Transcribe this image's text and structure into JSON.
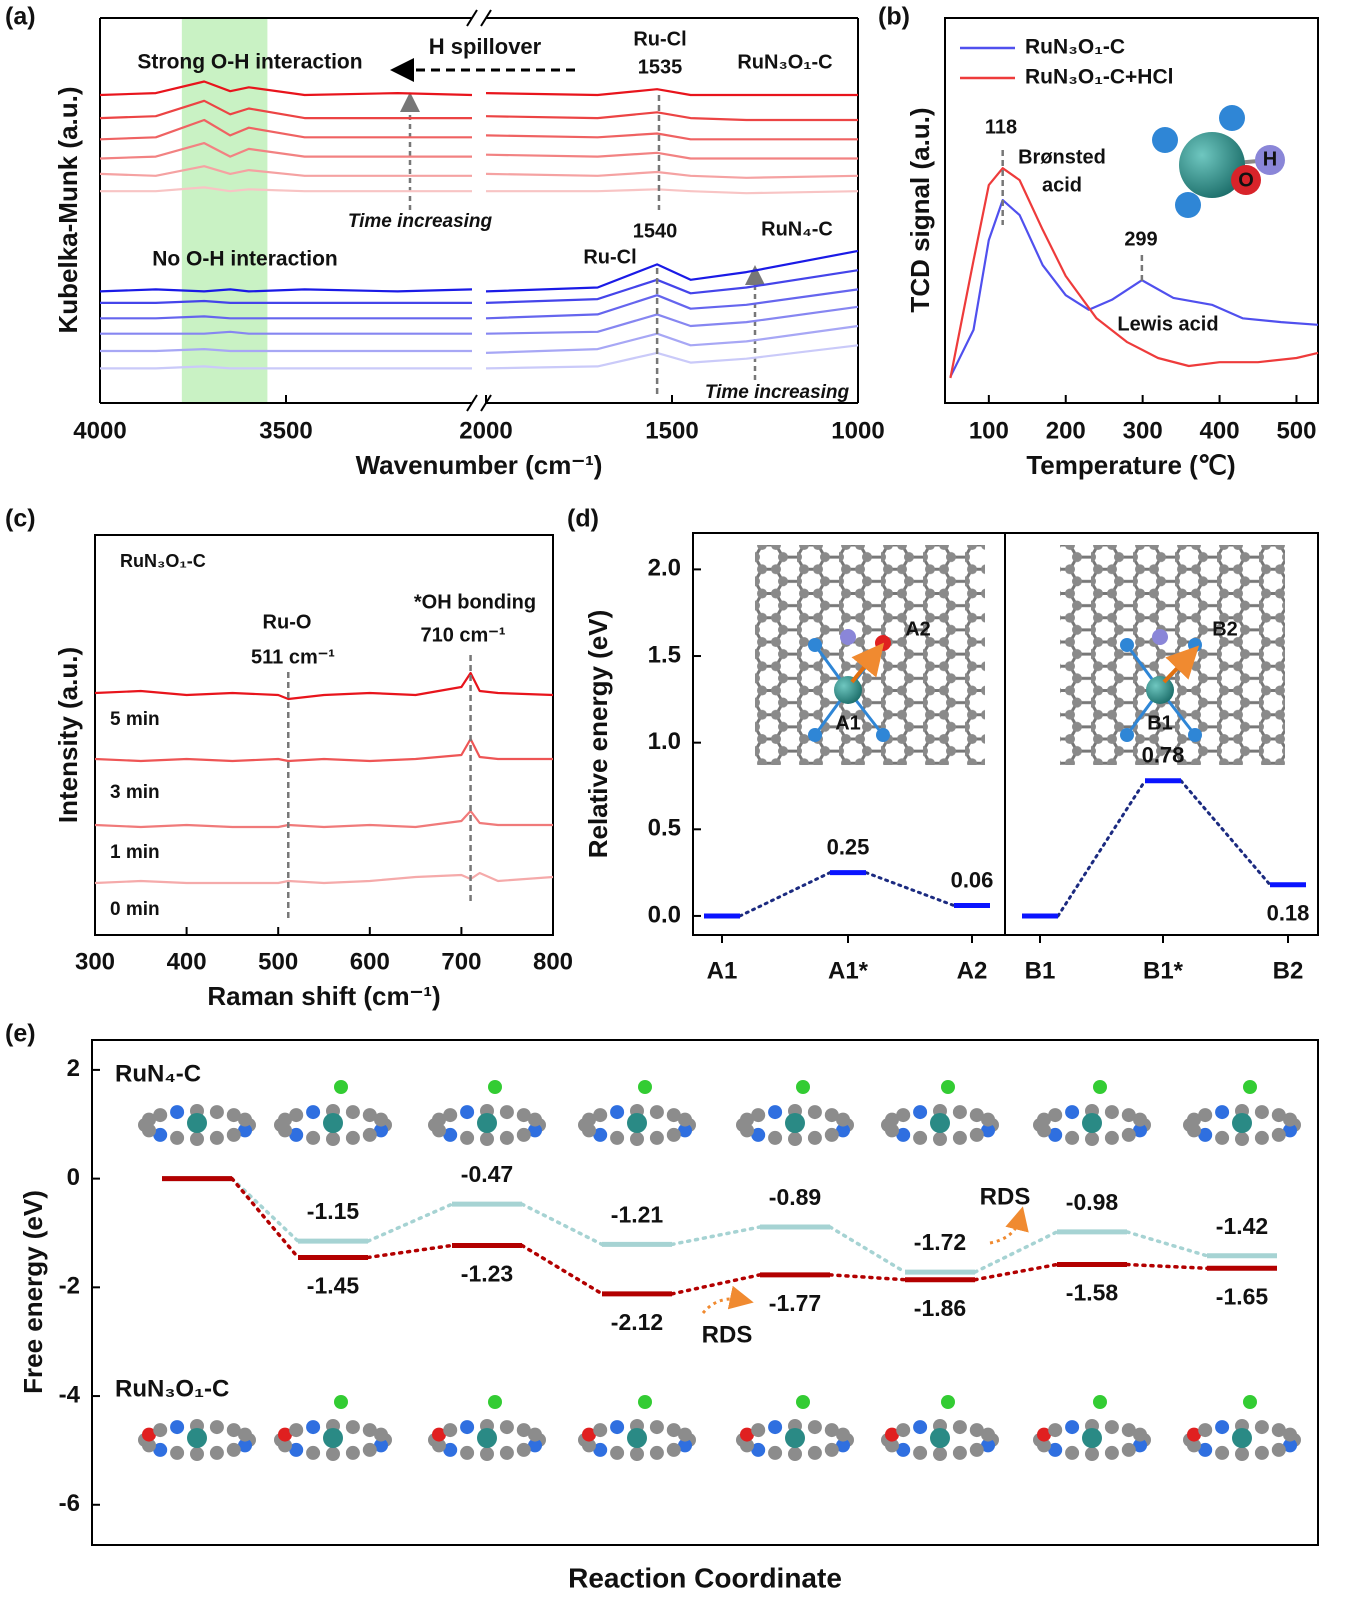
{
  "chart_data": [
    {
      "type": "line",
      "panel": "(a)",
      "xlabel": "Wavenumber (cm⁻¹)",
      "ylabel": "Kubelka-Munk (a.u.)",
      "xlim": [
        4000,
        1000
      ],
      "xbreak": [
        3000,
        2000
      ],
      "xticks": [
        4000,
        3500,
        2000,
        1500,
        1000
      ],
      "ylim": [
        0,
        10
      ],
      "highlight": [
        3780,
        3550
      ],
      "highlight_color": "#c9f2c4",
      "x": [
        4000,
        3850,
        3720,
        3650,
        3600,
        3450,
        3200,
        3000,
        2000,
        1700,
        1540,
        1450,
        1300,
        1000
      ],
      "series": [
        {
          "color": "#e8141c",
          "values": [
            8.0,
            8.05,
            8.35,
            8.1,
            8.2,
            8.0,
            8.05,
            8.0,
            8.05,
            8.0,
            8.15,
            8.0,
            8.0,
            8.0
          ]
        },
        {
          "color": "#ec4444",
          "values": [
            7.4,
            7.45,
            7.85,
            7.5,
            7.65,
            7.4,
            7.4,
            7.4,
            7.45,
            7.4,
            7.55,
            7.4,
            7.35,
            7.35
          ]
        },
        {
          "color": "#ef6262",
          "values": [
            6.85,
            6.9,
            7.35,
            6.95,
            7.15,
            6.9,
            6.9,
            6.9,
            6.95,
            6.9,
            7.0,
            6.85,
            6.85,
            6.85
          ]
        },
        {
          "color": "#f28282",
          "values": [
            6.35,
            6.4,
            6.75,
            6.4,
            6.6,
            6.4,
            6.4,
            6.4,
            6.45,
            6.4,
            6.5,
            6.35,
            6.35,
            6.35
          ]
        },
        {
          "color": "#f5a2a2",
          "values": [
            5.95,
            5.9,
            6.15,
            5.95,
            6.05,
            5.9,
            5.9,
            5.9,
            5.95,
            5.9,
            6.0,
            5.9,
            5.85,
            5.9
          ]
        },
        {
          "color": "#f8c4c4",
          "values": [
            5.5,
            5.5,
            5.6,
            5.5,
            5.55,
            5.5,
            5.5,
            5.5,
            5.5,
            5.5,
            5.55,
            5.5,
            5.45,
            5.5
          ]
        },
        {
          "color": "#1a1ae6",
          "values": [
            2.9,
            2.95,
            2.9,
            2.95,
            2.9,
            2.95,
            2.9,
            2.95,
            2.9,
            3.0,
            3.6,
            3.2,
            3.4,
            3.95
          ]
        },
        {
          "color": "#4444ea",
          "values": [
            2.6,
            2.6,
            2.65,
            2.6,
            2.6,
            2.6,
            2.6,
            2.6,
            2.6,
            2.7,
            3.2,
            2.85,
            3.0,
            3.45
          ]
        },
        {
          "color": "#6565ee",
          "values": [
            2.2,
            2.2,
            2.25,
            2.2,
            2.2,
            2.2,
            2.2,
            2.2,
            2.2,
            2.3,
            2.8,
            2.45,
            2.55,
            2.95
          ]
        },
        {
          "color": "#8686f1",
          "values": [
            1.8,
            1.8,
            1.8,
            1.85,
            1.8,
            1.8,
            1.8,
            1.8,
            1.8,
            1.85,
            2.3,
            2.0,
            2.1,
            2.5
          ]
        },
        {
          "color": "#a7a7f5",
          "values": [
            1.35,
            1.35,
            1.4,
            1.35,
            1.35,
            1.35,
            1.35,
            1.35,
            1.3,
            1.4,
            1.8,
            1.5,
            1.6,
            2.0
          ]
        },
        {
          "color": "#cacaf9",
          "values": [
            0.9,
            0.9,
            0.95,
            0.9,
            0.9,
            0.9,
            0.9,
            0.9,
            0.9,
            0.95,
            1.3,
            1.05,
            1.15,
            1.5
          ]
        }
      ],
      "annotations": [
        "Strong O-H interaction",
        "H spillover",
        "Ru-Cl",
        "RuN₃O₁-C",
        "Time increasing",
        "Ru-Cl",
        "RuN₄-C",
        "No O-H interaction",
        "Time increasing"
      ],
      "peak_marks": [
        1535,
        1540
      ]
    },
    {
      "type": "line",
      "panel": "(b)",
      "xlabel": "Temperature (℃)",
      "ylabel": "TCD signal (a.u.)",
      "xlim": [
        43,
        528
      ],
      "xticks": [
        100,
        200,
        300,
        400,
        500
      ],
      "ylim": [
        0,
        10
      ],
      "legend": "upper left",
      "series": [
        {
          "name": "RuN₃O₁-C",
          "color": "#5050ee",
          "x": [
            50,
            80,
            100,
            118,
            140,
            170,
            200,
            230,
            260,
            299,
            340,
            390,
            430,
            480,
            528
          ],
          "values": [
            0.68,
            1.9,
            4.23,
            5.27,
            4.88,
            3.58,
            2.8,
            2.42,
            2.68,
            3.19,
            2.73,
            2.55,
            2.2,
            2.1,
            2.03
          ]
        },
        {
          "name": "RuN₃O₁-C+HCl",
          "color": "#ee3b3b",
          "x": [
            50,
            80,
            100,
            118,
            140,
            170,
            200,
            240,
            280,
            320,
            360,
            400,
            450,
            500,
            528
          ],
          "values": [
            0.65,
            3.7,
            5.66,
            6.1,
            5.79,
            4.5,
            3.3,
            2.2,
            1.58,
            1.17,
            0.96,
            1.06,
            1.06,
            1.17,
            1.3
          ]
        }
      ],
      "annotations": [
        "Brønsted",
        "acid",
        "Lewis acid",
        "O",
        "H"
      ],
      "peak_marks": [
        118,
        299
      ]
    },
    {
      "type": "line",
      "panel": "(c)",
      "xlabel": "Raman shift (cm⁻¹)",
      "ylabel": "Intensity (a.u.)",
      "xlim": [
        300,
        800
      ],
      "xticks": [
        300,
        400,
        500,
        600,
        700,
        800
      ],
      "ylim": [
        0,
        10
      ],
      "x": [
        300,
        350,
        400,
        450,
        500,
        511,
        550,
        600,
        650,
        700,
        710,
        720,
        740,
        800
      ],
      "series": [
        {
          "name": "5 min",
          "color": "#e8141c",
          "values": [
            6.05,
            6.1,
            6.0,
            6.05,
            6.0,
            5.9,
            6.0,
            6.05,
            6.0,
            6.2,
            6.55,
            6.1,
            6.05,
            6.0
          ]
        },
        {
          "name": "3 min",
          "color": "#ee5555",
          "values": [
            4.4,
            4.35,
            4.4,
            4.35,
            4.4,
            4.35,
            4.4,
            4.35,
            4.4,
            4.5,
            4.9,
            4.45,
            4.4,
            4.4
          ]
        },
        {
          "name": "1 min",
          "color": "#f07a7a",
          "values": [
            2.75,
            2.7,
            2.75,
            2.7,
            2.7,
            2.75,
            2.7,
            2.75,
            2.7,
            2.85,
            3.1,
            2.8,
            2.75,
            2.75
          ]
        },
        {
          "name": "0 min",
          "color": "#f5aaaa",
          "values": [
            1.3,
            1.35,
            1.3,
            1.3,
            1.3,
            1.35,
            1.3,
            1.35,
            1.45,
            1.5,
            1.4,
            1.55,
            1.35,
            1.45
          ]
        }
      ],
      "annotations": [
        "RuN₃O₁-C",
        "Ru-O",
        "*OH bonding"
      ],
      "peak_marks": [
        {
          "value": 511,
          "label": "511 cm⁻¹"
        },
        {
          "value": 710,
          "label": "710 cm⁻¹"
        }
      ]
    },
    {
      "type": "energy-levels",
      "panel": "(d)",
      "ylabel": "Relative energy (eV)",
      "categories": [
        "A1",
        "A1*",
        "A2",
        "B1",
        "B1*",
        "B2"
      ],
      "values": [
        0,
        0.25,
        0.06,
        0,
        0.78,
        0.18
      ],
      "value_labels": [
        null,
        "0.25",
        "0.06",
        null,
        "0.78",
        "0.18"
      ],
      "color": "#0a14ff",
      "connector_color": "#1b2a80",
      "ylim": [
        -0.11,
        2.21
      ],
      "yticks": [
        {
          "value": 0,
          "label": "0.0"
        },
        0.5,
        {
          "value": 1,
          "label": "1.0"
        },
        1.5,
        {
          "value": 2,
          "label": "2.0"
        }
      ]
    },
    {
      "type": "energy-profile",
      "panel": "(e)",
      "ylabel": "Free energy (eV)",
      "xlabel": "Reaction Coordinate",
      "ylim": [
        -6.74,
        2.55
      ],
      "yticks": [
        2,
        0,
        -2,
        -4,
        -6
      ],
      "series": [
        {
          "name": "RuN₄-C",
          "color": "#a6d3d3",
          "values": [
            0,
            -1.15,
            -0.47,
            -1.21,
            -0.89,
            -1.72,
            -0.98,
            -1.42
          ],
          "value_labels": [
            null,
            "-1.15",
            "-0.47",
            "-1.21",
            "-0.89",
            "-1.72",
            "-0.98",
            "-1.42"
          ]
        },
        {
          "name": "RuN₃O₁-C",
          "color": "#b30000",
          "values": [
            0,
            -1.45,
            -1.23,
            -2.12,
            -1.77,
            -1.86,
            -1.58,
            -1.65
          ],
          "value_labels": [
            null,
            "-1.45",
            "-1.23",
            "-2.12",
            "-1.77",
            "-1.86",
            "-1.58",
            "-1.65"
          ]
        }
      ],
      "annotations": [
        "RDS",
        "RDS"
      ]
    }
  ]
}
